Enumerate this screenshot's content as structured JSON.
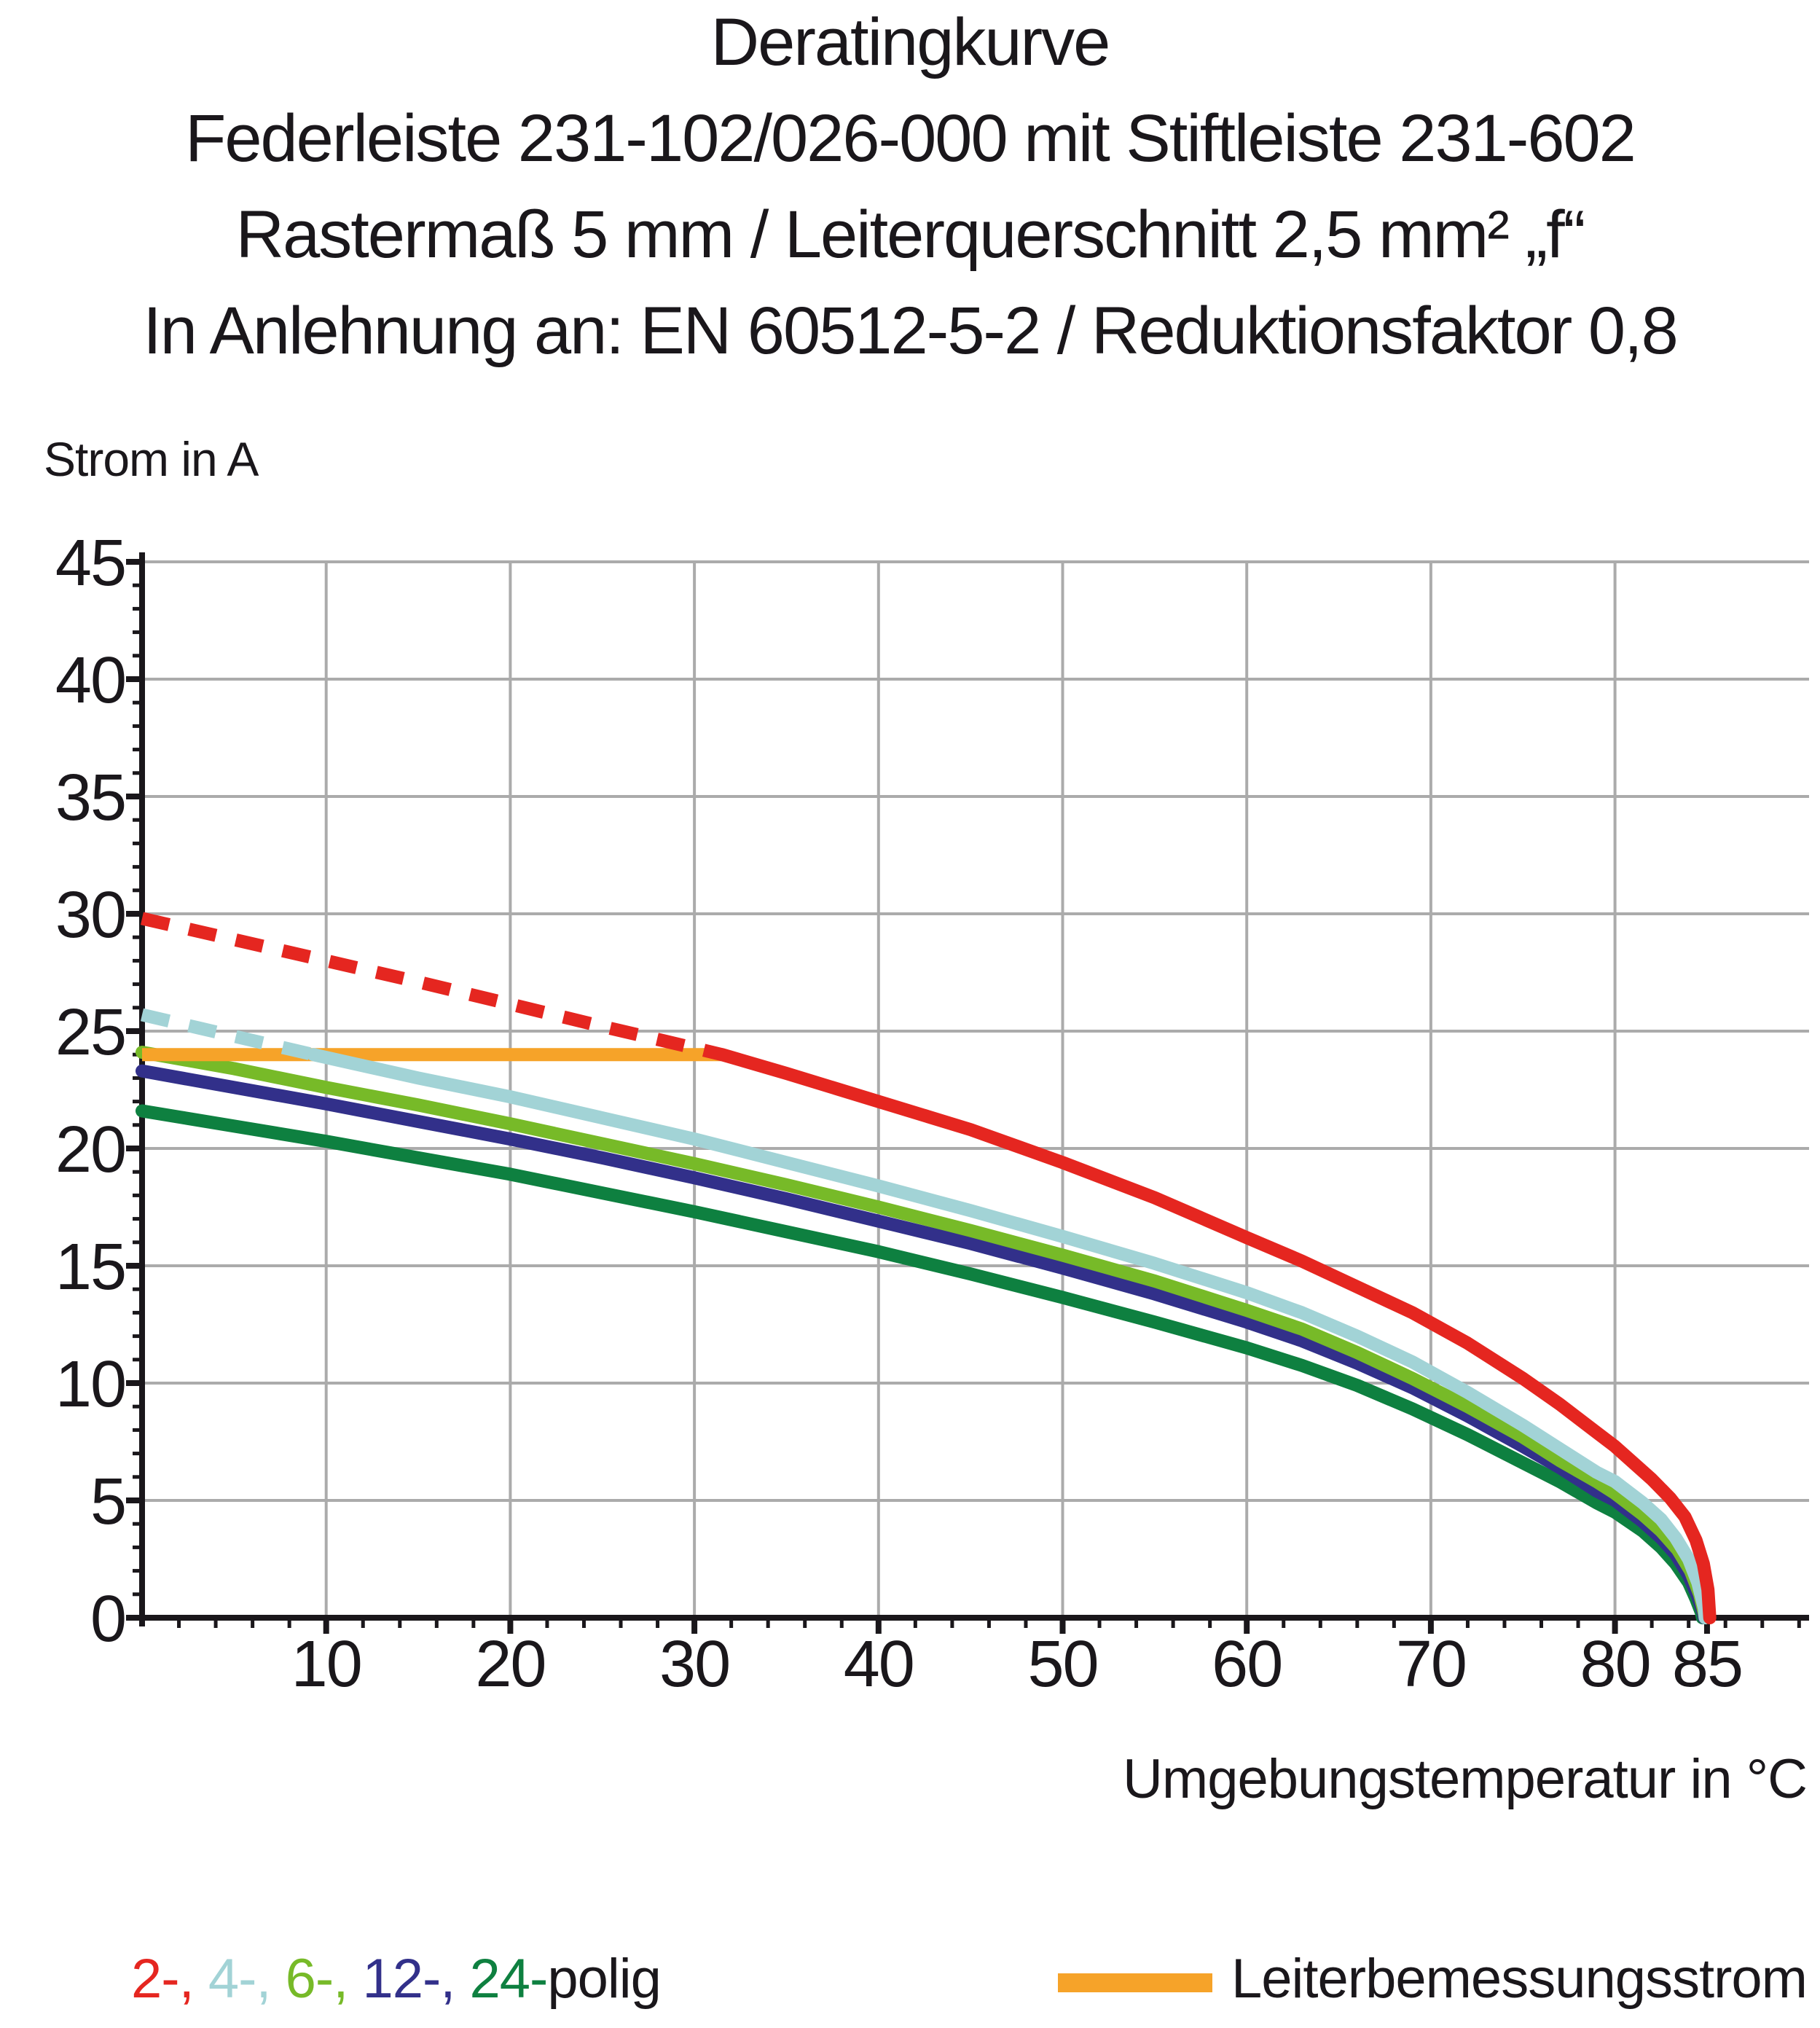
{
  "chart_data": {
    "type": "line",
    "title": "Deratingkurve",
    "subtitle_lines": [
      "Federleiste 231-102/026-000 mit Stiftleiste 231-602",
      "Rastermaß 5 mm / Leiterquerschnitt 2,5 mm² „f“",
      "In Anlehnung an: EN 60512-5-2 / Reduktionsfaktor 0,8"
    ],
    "xlabel": "Umgebungstemperatur in °C",
    "ylabel": "Strom in A",
    "xlim": [
      0,
      90
    ],
    "ylim": [
      0,
      45
    ],
    "grid": {
      "x_gridlines": [
        10,
        20,
        30,
        40,
        50,
        60,
        70,
        80
      ],
      "y_gridlines": [
        5,
        10,
        15,
        20,
        25,
        30,
        35,
        40,
        45
      ],
      "color": "#ababab"
    },
    "x_ticks_labeled": [
      10,
      20,
      30,
      40,
      50,
      60,
      70,
      80,
      85
    ],
    "x_minor_tick_step": 2,
    "y_ticks_labeled": [
      0,
      5,
      10,
      15,
      20,
      25,
      30,
      35,
      40,
      45
    ],
    "y_minor_tick_step": 1,
    "axis_color": "#1a171b",
    "series": [
      {
        "name": "24-polig",
        "color": "#0e8040",
        "segments": [
          {
            "style": "solid",
            "points": [
              [
                0,
                21.6
              ],
              [
                5,
                20.95
              ],
              [
                10,
                20.3
              ],
              [
                15,
                19.6
              ],
              [
                20,
                18.9
              ],
              [
                25,
                18.1
              ],
              [
                30,
                17.3
              ],
              [
                35,
                16.45
              ],
              [
                40,
                15.6
              ],
              [
                45,
                14.65
              ],
              [
                50,
                13.65
              ],
              [
                55,
                12.6
              ],
              [
                60,
                11.5
              ],
              [
                63,
                10.75
              ],
              [
                66,
                9.9
              ],
              [
                69,
                8.9
              ],
              [
                72,
                7.8
              ],
              [
                75,
                6.6
              ],
              [
                77,
                5.8
              ],
              [
                79,
                4.9
              ],
              [
                80,
                4.5
              ],
              [
                81.5,
                3.7
              ],
              [
                82.5,
                3.0
              ],
              [
                83.3,
                2.3
              ],
              [
                84,
                1.5
              ],
              [
                84.4,
                0.8
              ],
              [
                84.7,
                0.2
              ],
              [
                84.75,
                0.0
              ]
            ]
          }
        ]
      },
      {
        "name": "12-polig",
        "color": "#32308a",
        "segments": [
          {
            "style": "solid",
            "points": [
              [
                0,
                23.3
              ],
              [
                5,
                22.6
              ],
              [
                10,
                21.9
              ],
              [
                15,
                21.15
              ],
              [
                20,
                20.4
              ],
              [
                25,
                19.6
              ],
              [
                30,
                18.75
              ],
              [
                35,
                17.85
              ],
              [
                40,
                16.9
              ],
              [
                45,
                15.95
              ],
              [
                50,
                14.9
              ],
              [
                55,
                13.8
              ],
              [
                60,
                12.6
              ],
              [
                63,
                11.8
              ],
              [
                66,
                10.85
              ],
              [
                69,
                9.8
              ],
              [
                72,
                8.6
              ],
              [
                75,
                7.3
              ],
              [
                77,
                6.4
              ],
              [
                79,
                5.4
              ],
              [
                80,
                5.0
              ],
              [
                81.5,
                4.1
              ],
              [
                82.5,
                3.4
              ],
              [
                83.3,
                2.7
              ],
              [
                84,
                1.8
              ],
              [
                84.5,
                0.9
              ],
              [
                84.8,
                0.2
              ],
              [
                84.85,
                0.0
              ]
            ]
          }
        ]
      },
      {
        "name": "6-polig",
        "color": "#77ba28",
        "segments": [
          {
            "style": "solid",
            "points": [
              [
                0,
                24.1
              ],
              [
                5,
                23.4
              ],
              [
                10,
                22.6
              ],
              [
                15,
                21.85
              ],
              [
                20,
                21.05
              ],
              [
                25,
                20.2
              ],
              [
                30,
                19.35
              ],
              [
                35,
                18.45
              ],
              [
                40,
                17.5
              ],
              [
                45,
                16.5
              ],
              [
                50,
                15.45
              ],
              [
                55,
                14.35
              ],
              [
                60,
                13.1
              ],
              [
                63,
                12.3
              ],
              [
                66,
                11.3
              ],
              [
                69,
                10.2
              ],
              [
                72,
                9.0
              ],
              [
                75,
                7.7
              ],
              [
                77,
                6.7
              ],
              [
                79,
                5.8
              ],
              [
                80,
                5.3
              ],
              [
                81.5,
                4.4
              ],
              [
                82.5,
                3.7
              ],
              [
                83.4,
                2.9
              ],
              [
                84.1,
                2.0
              ],
              [
                84.6,
                1.0
              ],
              [
                84.85,
                0.2
              ],
              [
                84.9,
                0.0
              ]
            ]
          }
        ]
      },
      {
        "name": "Leiterbemessungsstrom",
        "color": "#f6a329",
        "cap": "butt",
        "segments": [
          {
            "style": "solid",
            "points": [
              [
                0,
                24
              ],
              [
                31.5,
                24
              ]
            ]
          }
        ]
      },
      {
        "name": "4-polig",
        "color": "#a2d3d6",
        "segments": [
          {
            "style": "dashed",
            "points": [
              [
                0,
                25.7
              ],
              [
                3,
                25.15
              ],
              [
                6,
                24.6
              ],
              [
                9.3,
                24.0
              ]
            ]
          },
          {
            "style": "solid",
            "points": [
              [
                9.3,
                24.0
              ],
              [
                15,
                23.0
              ],
              [
                20,
                22.2
              ],
              [
                25,
                21.3
              ],
              [
                30,
                20.4
              ],
              [
                35,
                19.4
              ],
              [
                40,
                18.4
              ],
              [
                45,
                17.35
              ],
              [
                50,
                16.25
              ],
              [
                55,
                15.1
              ],
              [
                60,
                13.85
              ],
              [
                63,
                13.0
              ],
              [
                66,
                12.0
              ],
              [
                69,
                10.9
              ],
              [
                72,
                9.6
              ],
              [
                75,
                8.2
              ],
              [
                77,
                7.2
              ],
              [
                79,
                6.2
              ],
              [
                80,
                5.8
              ],
              [
                81.5,
                4.9
              ],
              [
                82.5,
                4.2
              ],
              [
                83.3,
                3.4
              ],
              [
                84,
                2.5
              ],
              [
                84.5,
                1.5
              ],
              [
                84.85,
                0.4
              ],
              [
                84.9,
                0.0
              ]
            ]
          }
        ]
      },
      {
        "name": "2-polig",
        "color": "#e52620",
        "segments": [
          {
            "style": "dashed",
            "points": [
              [
                0,
                29.8
              ],
              [
                5,
                28.9
              ],
              [
                10,
                28.0
              ],
              [
                15,
                27.1
              ],
              [
                20,
                26.15
              ],
              [
                25,
                25.2
              ],
              [
                28,
                24.65
              ],
              [
                31.5,
                24.0
              ]
            ]
          },
          {
            "style": "solid",
            "points": [
              [
                31.5,
                24.0
              ],
              [
                35,
                23.2
              ],
              [
                40,
                22.0
              ],
              [
                45,
                20.8
              ],
              [
                50,
                19.4
              ],
              [
                55,
                17.9
              ],
              [
                60,
                16.2
              ],
              [
                63,
                15.2
              ],
              [
                66,
                14.1
              ],
              [
                69,
                13.0
              ],
              [
                72,
                11.7
              ],
              [
                75,
                10.2
              ],
              [
                77,
                9.1
              ],
              [
                79,
                7.9
              ],
              [
                80,
                7.3
              ],
              [
                81,
                6.6
              ],
              [
                82,
                5.9
              ],
              [
                83,
                5.1
              ],
              [
                83.8,
                4.3
              ],
              [
                84.4,
                3.3
              ],
              [
                84.8,
                2.3
              ],
              [
                85.05,
                1.2
              ],
              [
                85.15,
                0.0
              ]
            ]
          }
        ]
      }
    ]
  },
  "legend": {
    "poles_segments": [
      {
        "label": "2-, ",
        "color": "#e52620"
      },
      {
        "label": "4-, ",
        "color": "#a2d3d6"
      },
      {
        "label": "6-, ",
        "color": "#77ba28"
      },
      {
        "label": "12-, ",
        "color": "#32308a"
      },
      {
        "label": "24-",
        "color": "#0e8040"
      },
      {
        "label": "polig",
        "color": "#1a171b"
      }
    ],
    "rated": {
      "label": "Leiterbemessungsstrom",
      "swatch_color": "#f6a329"
    }
  }
}
